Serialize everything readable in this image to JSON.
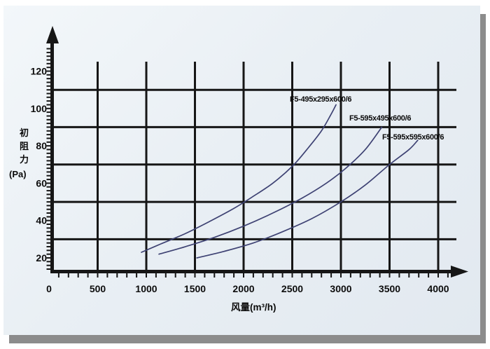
{
  "card": {
    "background_top": "#f3f7fa",
    "background_bottom": "#e2e9f0",
    "shadow_color": "#8c8c8c"
  },
  "chart_data": {
    "type": "line",
    "title": "",
    "xlabel": "风量(m³/h)",
    "ylabel": "初阻力",
    "ylabel_unit": "(Pa)",
    "xlim": [
      0,
      4200
    ],
    "ylim": [
      13,
      134
    ],
    "x_ticks": [
      0,
      500,
      1000,
      1500,
      2000,
      2500,
      3000,
      3500,
      4000
    ],
    "y_ticks": [
      20,
      40,
      60,
      80,
      100,
      120
    ],
    "v_gridlines": [
      500,
      1000,
      1500,
      2000,
      2500,
      3000,
      3500,
      4000
    ],
    "h_gridlines": [
      30,
      50,
      70,
      90,
      110
    ],
    "x_minor_tick_step": 100,
    "y_minor_tick_step": 2,
    "grid_on": true,
    "axis_color": "#161616",
    "curve_color": "#3e4273",
    "legend_position": "labels-at-line-ends",
    "series": [
      {
        "label": "F5-495x295x600/6",
        "points": [
          [
            950,
            23
          ],
          [
            1150,
            27.5
          ],
          [
            1400,
            33
          ],
          [
            1650,
            39.5
          ],
          [
            1900,
            46.5
          ],
          [
            2100,
            53
          ],
          [
            2300,
            60
          ],
          [
            2500,
            69
          ],
          [
            2650,
            78
          ],
          [
            2800,
            88
          ],
          [
            2900,
            97
          ],
          [
            2950,
            102
          ]
        ]
      },
      {
        "label": "F5-595x495x600/6",
        "points": [
          [
            1130,
            22
          ],
          [
            1400,
            26
          ],
          [
            1700,
            31
          ],
          [
            2000,
            37
          ],
          [
            2300,
            44
          ],
          [
            2600,
            52
          ],
          [
            2850,
            60
          ],
          [
            3050,
            68
          ],
          [
            3250,
            78
          ],
          [
            3420,
            90
          ]
        ]
      },
      {
        "label": "F5-595x595x600/6",
        "points": [
          [
            1520,
            20
          ],
          [
            1800,
            23.5
          ],
          [
            2100,
            28
          ],
          [
            2400,
            34
          ],
          [
            2700,
            41
          ],
          [
            3000,
            50
          ],
          [
            3250,
            59
          ],
          [
            3500,
            70
          ],
          [
            3700,
            78
          ],
          [
            3790,
            83
          ]
        ]
      }
    ]
  }
}
